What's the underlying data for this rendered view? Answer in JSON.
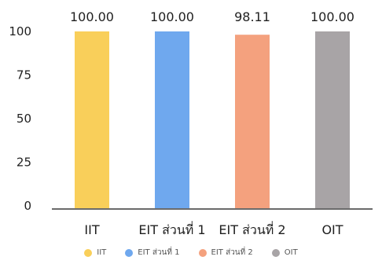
{
  "chart_data": {
    "type": "bar",
    "categories": [
      "IIT",
      "EIT ส่วนที่ 1",
      "EIT ส่วนที่ 2",
      "OIT"
    ],
    "values": [
      100.0,
      100.0,
      98.11,
      100.0
    ],
    "value_labels": [
      "100.00",
      "100.00",
      "98.11",
      "100.00"
    ],
    "colors": [
      "#F9CF5A",
      "#6FA8EE",
      "#F4A17E",
      "#A8A4A6"
    ],
    "ylim": [
      0,
      100
    ],
    "yticks": [
      0,
      25,
      50,
      75,
      100
    ],
    "title": "",
    "xlabel": "",
    "ylabel": "",
    "grid": false,
    "legend": {
      "position": "bottom",
      "entries": [
        "IIT",
        "EIT ส่วนที่ 1",
        "EIT ส่วนที่ 2",
        "OIT"
      ]
    }
  }
}
